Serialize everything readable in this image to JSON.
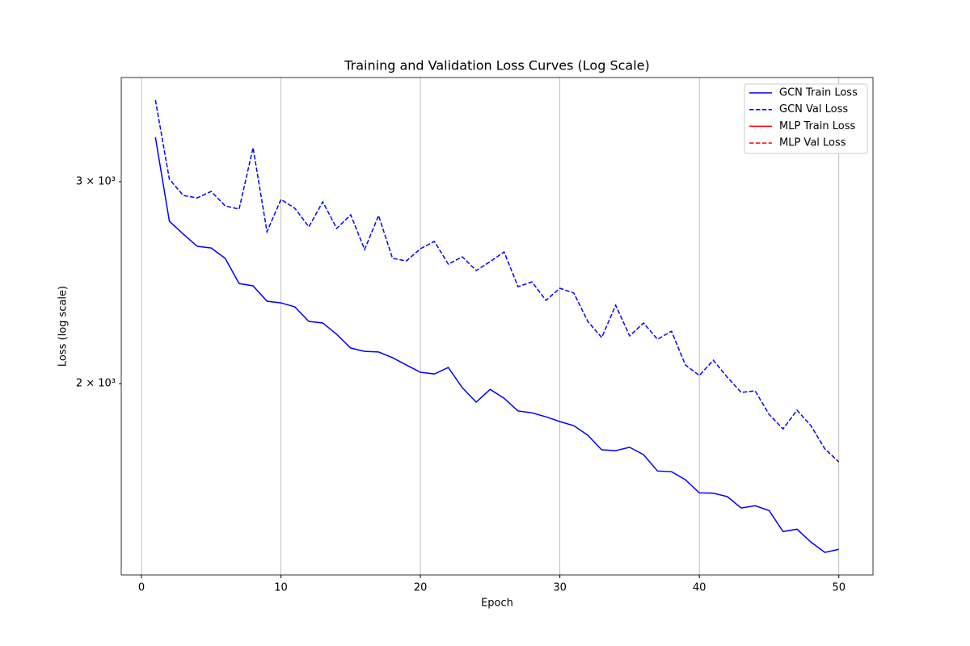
{
  "chart_data": {
    "type": "line",
    "title": "Training and Validation Loss Curves (Log Scale)",
    "xlabel": "Epoch",
    "ylabel": "Loss (log scale)",
    "x": [
      1,
      2,
      3,
      4,
      5,
      6,
      7,
      8,
      9,
      10,
      11,
      12,
      13,
      14,
      15,
      16,
      17,
      18,
      19,
      20,
      21,
      22,
      23,
      24,
      25,
      26,
      27,
      28,
      29,
      30,
      31,
      32,
      33,
      34,
      35,
      36,
      37,
      38,
      39,
      40,
      41,
      42,
      43,
      44,
      45,
      46,
      47,
      48,
      49,
      50
    ],
    "series": [
      {
        "name": "GCN Train Loss",
        "color": "#0000ff",
        "linestyle": "solid",
        "values": [
          3280,
          2771,
          2700,
          2635,
          2626,
          2572,
          2445,
          2434,
          2360,
          2352,
          2333,
          2266,
          2259,
          2208,
          2148,
          2134,
          2131,
          2107,
          2076,
          2046,
          2039,
          2066,
          1984,
          1927,
          1977,
          1942,
          1893,
          1886,
          1871,
          1853,
          1838,
          1803,
          1751,
          1748,
          1760,
          1734,
          1678,
          1676,
          1649,
          1606,
          1605,
          1594,
          1558,
          1565,
          1550,
          1486,
          1493,
          1455,
          1425,
          1434
        ]
      },
      {
        "name": "GCN Val Loss",
        "color": "#0000ff",
        "linestyle": "dashed",
        "values": [
          3534,
          3015,
          2918,
          2904,
          2942,
          2858,
          2839,
          3212,
          2713,
          2895,
          2844,
          2740,
          2881,
          2731,
          2807,
          2618,
          2803,
          2572,
          2559,
          2622,
          2661,
          2542,
          2580,
          2510,
          2555,
          2605,
          2430,
          2453,
          2364,
          2422,
          2399,
          2266,
          2194,
          2341,
          2201,
          2259,
          2186,
          2222,
          2076,
          2033,
          2096,
          2026,
          1965,
          1971,
          1880,
          1826,
          1896,
          1838,
          1754,
          1709
        ]
      },
      {
        "name": "MLP Train Loss",
        "color": "#ff0000",
        "linestyle": "solid",
        "values": [
          null,
          null,
          null,
          null,
          null,
          null,
          null,
          null,
          null,
          null,
          null,
          null,
          null,
          null,
          null,
          null,
          null,
          null,
          null,
          null,
          null,
          null,
          null,
          null,
          null,
          null,
          null,
          null,
          null,
          null,
          null,
          null,
          null,
          null,
          null,
          null,
          null,
          null,
          null,
          null,
          null,
          null,
          null,
          null,
          null,
          null,
          null,
          null,
          null,
          null
        ]
      },
      {
        "name": "MLP Val Loss",
        "color": "#ff0000",
        "linestyle": "dashed",
        "values": [
          null,
          null,
          null,
          null,
          null,
          null,
          null,
          null,
          null,
          null,
          null,
          null,
          null,
          null,
          null,
          null,
          null,
          null,
          null,
          null,
          null,
          null,
          null,
          null,
          null,
          null,
          null,
          null,
          null,
          null,
          null,
          null,
          null,
          null,
          null,
          null,
          null,
          null,
          null,
          null,
          null,
          null,
          null,
          null,
          null,
          null,
          null,
          null,
          null,
          null
        ]
      }
    ],
    "xlim": [
      -1.45,
      52.45
    ],
    "xticks": [
      0,
      10,
      20,
      30,
      40,
      50
    ],
    "ylim": [
      1362,
      3698
    ],
    "yscale": "log",
    "yticks": [
      {
        "value": 2000,
        "label": "2 × 10³"
      },
      {
        "value": 3000,
        "label": "3 × 10³"
      }
    ],
    "xgrid": true,
    "legend": "upper right"
  }
}
